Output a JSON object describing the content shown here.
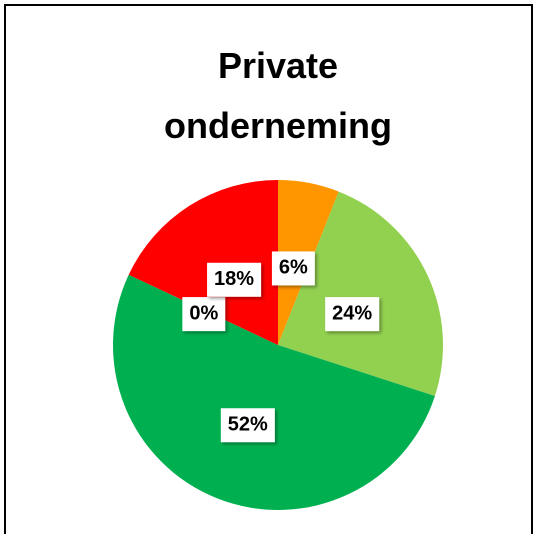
{
  "chart_data": {
    "type": "pie",
    "title": "Private onderneming",
    "values": [
      6,
      24,
      52,
      0,
      18
    ],
    "value_labels": [
      "6%",
      "24%",
      "52%",
      "0%",
      "18%"
    ],
    "colors": [
      "#ff9600",
      "#92d050",
      "#00b050",
      "#c00000",
      "#ff0000"
    ]
  }
}
